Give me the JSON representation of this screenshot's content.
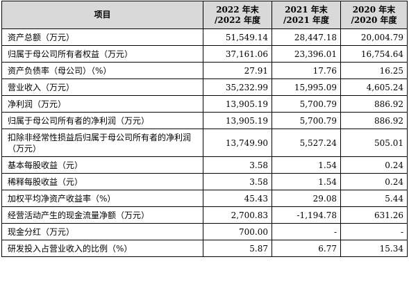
{
  "table": {
    "headers": [
      {
        "line1": "项目",
        "line2": ""
      },
      {
        "line1": "2022 年末",
        "line2": "/2022 年度"
      },
      {
        "line1": "2021 年末",
        "line2": "/2021 年度"
      },
      {
        "line1": "2020 年末",
        "line2": "/2020 年度"
      }
    ],
    "rows": [
      {
        "label": "资产总额（万元）",
        "values": [
          "51,549.14",
          "28,447.18",
          "20,004.79"
        ]
      },
      {
        "label": "归属于母公司所有者权益（万元）",
        "values": [
          "37,161.06",
          "23,396.01",
          "16,754.64"
        ]
      },
      {
        "label": "资产负债率（母公司）（%）",
        "values": [
          "27.91",
          "17.76",
          "16.25"
        ]
      },
      {
        "label": "营业收入（万元）",
        "values": [
          "35,232.99",
          "15,995.09",
          "4,605.24"
        ]
      },
      {
        "label": "净利润（万元）",
        "values": [
          "13,905.19",
          "5,700.79",
          "886.92"
        ]
      },
      {
        "label": "归属于母公司所有者的净利润（万元）",
        "values": [
          "13,905.19",
          "5,700.79",
          "886.92"
        ]
      },
      {
        "label": "扣除非经常性损益后归属于母公司所有者的净利润（万元）",
        "values": [
          "13,749.90",
          "5,527.24",
          "505.01"
        ]
      },
      {
        "label": "基本每股收益（元）",
        "values": [
          "3.58",
          "1.54",
          "0.24"
        ]
      },
      {
        "label": "稀释每股收益（元）",
        "values": [
          "3.58",
          "1.54",
          "0.24"
        ]
      },
      {
        "label": "加权平均净资产收益率（%）",
        "values": [
          "45.43",
          "29.08",
          "5.44"
        ]
      },
      {
        "label": "经营活动产生的现金流量净额（万元）",
        "values": [
          "2,700.83",
          "-1,194.78",
          "631.26"
        ]
      },
      {
        "label": "现金分红（万元）",
        "values": [
          "700.00",
          "-",
          "-"
        ]
      },
      {
        "label": "研发投入占营业收入的比例（%）",
        "values": [
          "5.87",
          "6.77",
          "15.34"
        ]
      }
    ]
  }
}
